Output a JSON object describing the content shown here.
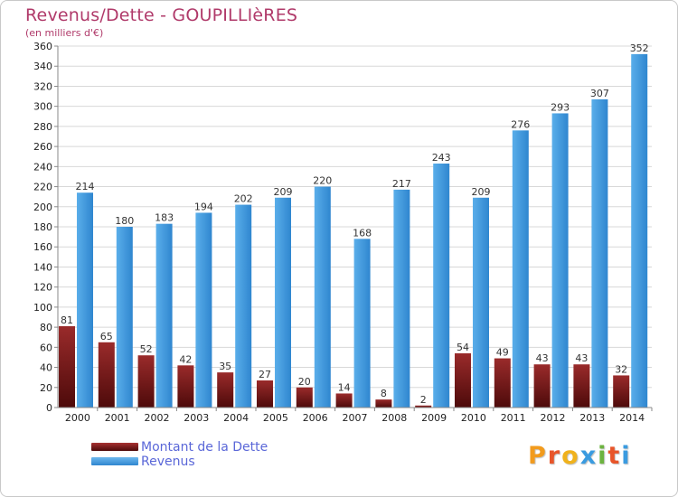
{
  "header": {
    "title": "Revenus/Dette - GOUPILLIèRES",
    "subtitle": "(en milliers d'€)"
  },
  "legend": {
    "items": [
      {
        "label": "Montant de la Dette",
        "color": "#7a1616"
      },
      {
        "label": "Revenus",
        "color": "#4aa0e6"
      }
    ]
  },
  "logo": {
    "text": "Proxiti",
    "alt": "Proxiti"
  },
  "colors": {
    "dette_top": "#9a2b2b",
    "dette_bottom": "#4d0a0a",
    "revenus_left": "#5aaeea",
    "revenus_right": "#2f86cf",
    "grid": "#d8d8d8"
  },
  "chart_data": {
    "type": "bar",
    "title": "Revenus/Dette - GOUPILLIèRES",
    "ylabel": "(en milliers d'€)",
    "xlabel": "",
    "ylim": [
      0,
      360
    ],
    "ytick_step": 20,
    "grid": true,
    "legend_position": "bottom-left",
    "categories": [
      "2000",
      "2001",
      "2002",
      "2003",
      "2004",
      "2005",
      "2006",
      "2007",
      "2008",
      "2009",
      "2010",
      "2011",
      "2012",
      "2013",
      "2014"
    ],
    "series": [
      {
        "name": "Montant de la Dette",
        "values": [
          81,
          65,
          52,
          42,
          35,
          27,
          20,
          14,
          8,
          2,
          54,
          49,
          43,
          43,
          32
        ]
      },
      {
        "name": "Revenus",
        "values": [
          214,
          180,
          183,
          194,
          202,
          209,
          220,
          168,
          217,
          243,
          209,
          276,
          293,
          307,
          352
        ]
      }
    ]
  }
}
